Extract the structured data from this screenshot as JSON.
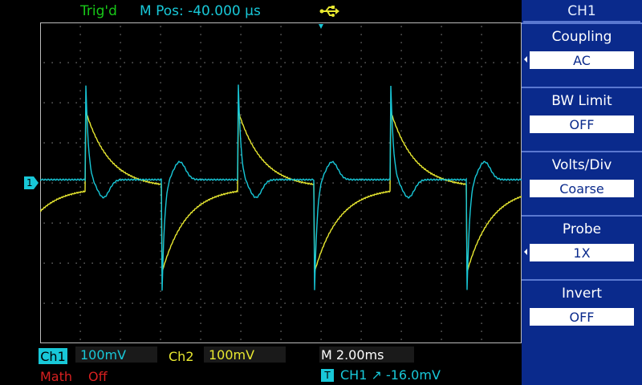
{
  "header": {
    "trigger_status": "Trig'd",
    "horizontal_position": "M Pos: -40.000 µs",
    "usb_icon": "usb-icon"
  },
  "colors": {
    "ch1": "#18c8d8",
    "ch2": "#e8e830",
    "math": "#d82020",
    "trig_status": "#18c8d8",
    "menu_bg": "#0a2a8c"
  },
  "menu": {
    "title": "CH1",
    "items": [
      {
        "label": "Coupling",
        "value": "AC",
        "has_arrow": true
      },
      {
        "label": "BW Limit",
        "value": "OFF",
        "has_arrow": false
      },
      {
        "label": "Volts/Div",
        "value": "Coarse",
        "has_arrow": false
      },
      {
        "label": "Probe",
        "value": "1X",
        "has_arrow": true
      },
      {
        "label": "Invert",
        "value": "OFF",
        "has_arrow": false
      }
    ]
  },
  "status": {
    "ch1_label": "Ch1",
    "ch1_scale": "100mV",
    "ch2_label": "Ch2",
    "ch2_scale": "100mV",
    "timebase": "M 2.00ms",
    "math_label": "Math",
    "math_value": "Off",
    "trigger_icon": "T",
    "trigger_info": "CH1 ↗ -16.0mV"
  },
  "channel_marker": "1"
}
